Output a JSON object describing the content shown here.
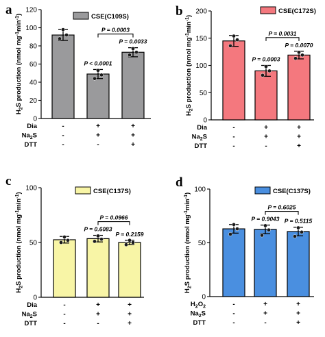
{
  "y_label_prefix": "H",
  "y_label_sub": "2",
  "y_label_main": "S production (nmol mg",
  "y_label_exp": "-1",
  "y_label_min": "min",
  "y_label_close": ")",
  "chart_data": [
    {
      "panel": "a",
      "type": "bar",
      "legend": "CSE(C109S)",
      "color": "#9a9a9c",
      "ylim": [
        0,
        120
      ],
      "yticks": [
        0,
        20,
        40,
        60,
        80,
        100,
        120
      ],
      "values": [
        92,
        49,
        73
      ],
      "errors": [
        6,
        5,
        5
      ],
      "points": [
        [
          88,
          92,
          98
        ],
        [
          44,
          48,
          53
        ],
        [
          70,
          73,
          77
        ]
      ],
      "stats": [
        {
          "bar": 1,
          "text": "P < 0.0001"
        },
        {
          "bar": 2,
          "text": "P = 0.0033"
        },
        {
          "from": 1,
          "to": 2,
          "text": "P = 0.0003"
        }
      ],
      "rows": [
        {
          "label": "Dia",
          "signs": [
            "-",
            "+",
            "+"
          ]
        },
        {
          "label": "Na2S",
          "signs": [
            "-",
            "+",
            "+"
          ]
        },
        {
          "label": "DTT",
          "signs": [
            "-",
            "-",
            "+"
          ]
        }
      ]
    },
    {
      "panel": "b",
      "type": "bar",
      "legend": "CSE(C172S)",
      "color": "#f4787e",
      "ylim": [
        0,
        200
      ],
      "yticks": [
        0,
        50,
        100,
        150,
        200
      ],
      "values": [
        145,
        90,
        119
      ],
      "errors": [
        10,
        10,
        7
      ],
      "points": [
        [
          136,
          147,
          154
        ],
        [
          82,
          90,
          98
        ],
        [
          113,
          119,
          124
        ]
      ],
      "stats": [
        {
          "bar": 1,
          "text": "P = 0.0003"
        },
        {
          "bar": 2,
          "text": "P = 0.0070"
        },
        {
          "from": 1,
          "to": 2,
          "text": "P = 0.0031"
        }
      ],
      "rows": [
        {
          "label": "Dia",
          "signs": [
            "-",
            "+",
            "+"
          ]
        },
        {
          "label": "Na2S",
          "signs": [
            "-",
            "+",
            "+"
          ]
        },
        {
          "label": "DTT",
          "signs": [
            "-",
            "-",
            "+"
          ]
        }
      ]
    },
    {
      "panel": "c",
      "type": "bar",
      "legend": "CSE(C137S)",
      "color": "#f8f5a6",
      "ylim": [
        0,
        100
      ],
      "yticks": [
        0,
        50,
        100
      ],
      "values": [
        52.5,
        53.5,
        50
      ],
      "errors": [
        3,
        3,
        2
      ],
      "points": [
        [
          50,
          52,
          55
        ],
        [
          51,
          53,
          56
        ],
        [
          48,
          50,
          52
        ]
      ],
      "stats": [
        {
          "bar": 1,
          "text": "P = 0.6083"
        },
        {
          "bar": 2,
          "text": "P = 0.2159"
        },
        {
          "from": 1,
          "to": 2,
          "text": "P = 0.0966"
        }
      ],
      "rows": [
        {
          "label": "Dia",
          "signs": [
            "-",
            "+",
            "+"
          ]
        },
        {
          "label": "Na2S",
          "signs": [
            "-",
            "+",
            "+"
          ]
        },
        {
          "label": "DTT",
          "signs": [
            "-",
            "-",
            "+"
          ]
        }
      ]
    },
    {
      "panel": "d",
      "type": "bar",
      "legend": "CSE(C137S)",
      "color": "#4a8fe0",
      "ylim": [
        0,
        100
      ],
      "yticks": [
        0,
        50,
        100
      ],
      "values": [
        63,
        62.5,
        60.5
      ],
      "errors": [
        4,
        4,
        4
      ],
      "points": [
        [
          58,
          63,
          67
        ],
        [
          57,
          62,
          66
        ],
        [
          56,
          60,
          64
        ]
      ],
      "stats": [
        {
          "bar": 1,
          "text": "P = 0.9043"
        },
        {
          "bar": 2,
          "text": "P = 0.5115"
        },
        {
          "from": 1,
          "to": 2,
          "text": "P = 0.6025"
        }
      ],
      "rows": [
        {
          "label": "H2O2",
          "signs": [
            "-",
            "+",
            "+"
          ]
        },
        {
          "label": "Na2S",
          "signs": [
            "-",
            "+",
            "+"
          ]
        },
        {
          "label": "DTT",
          "signs": [
            "-",
            "-",
            "+"
          ]
        }
      ]
    }
  ]
}
